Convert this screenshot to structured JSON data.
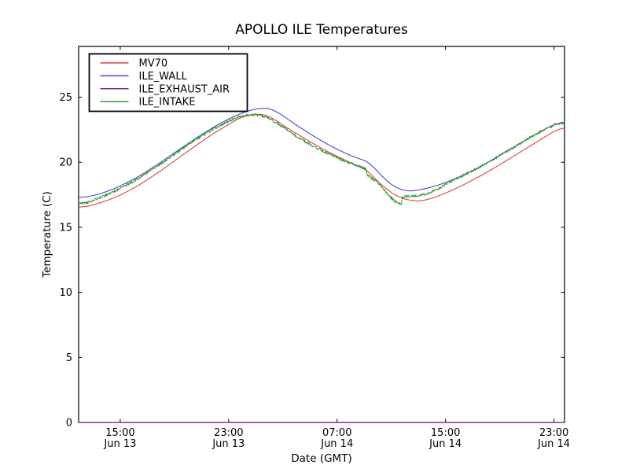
{
  "chart_data": {
    "type": "line",
    "title": "APOLLO ILE Temperatures",
    "xlabel": "Date (GMT)",
    "ylabel": "Temperature (C)",
    "x_unit": "hours since Jun 13 00:00 GMT",
    "xlim": [
      11.93,
      47.78
    ],
    "ylim": [
      0,
      28.9
    ],
    "grid": false,
    "legend_position": "upper left",
    "yticks": [
      0,
      5,
      10,
      15,
      20,
      25
    ],
    "xticks": [
      {
        "value": 15,
        "time": "15:00",
        "date": "Jun 13"
      },
      {
        "value": 23,
        "time": "23:00",
        "date": "Jun 13"
      },
      {
        "value": 31,
        "time": "07:00",
        "date": "Jun 14"
      },
      {
        "value": 39,
        "time": "15:00",
        "date": "Jun 14"
      },
      {
        "value": 47,
        "time": "23:00",
        "date": "Jun 14"
      }
    ],
    "series": [
      {
        "name": "MV70",
        "color": "#e04040",
        "width": 1.1,
        "noise": 0,
        "points": [
          [
            11.93,
            16.55
          ],
          [
            12.5,
            16.6
          ],
          [
            13,
            16.72
          ],
          [
            13.5,
            16.88
          ],
          [
            14,
            17.05
          ],
          [
            14.5,
            17.25
          ],
          [
            15,
            17.48
          ],
          [
            15.5,
            17.74
          ],
          [
            16,
            18.02
          ],
          [
            16.5,
            18.32
          ],
          [
            17,
            18.65
          ],
          [
            17.5,
            19.0
          ],
          [
            18,
            19.35
          ],
          [
            18.5,
            19.72
          ],
          [
            19,
            20.1
          ],
          [
            19.5,
            20.48
          ],
          [
            20,
            20.85
          ],
          [
            20.5,
            21.22
          ],
          [
            21,
            21.58
          ],
          [
            21.5,
            21.94
          ],
          [
            22,
            22.28
          ],
          [
            22.5,
            22.6
          ],
          [
            23,
            22.9
          ],
          [
            23.4,
            23.15
          ],
          [
            23.8,
            23.38
          ],
          [
            24.2,
            23.52
          ],
          [
            24.6,
            23.62
          ],
          [
            25,
            23.66
          ],
          [
            25.4,
            23.68
          ],
          [
            25.8,
            23.58
          ],
          [
            26.2,
            23.38
          ],
          [
            26.7,
            23.08
          ],
          [
            27.2,
            22.72
          ],
          [
            27.8,
            22.32
          ],
          [
            28.4,
            21.95
          ],
          [
            29,
            21.58
          ],
          [
            29.5,
            21.28
          ],
          [
            30,
            20.98
          ],
          [
            30.5,
            20.72
          ],
          [
            31,
            20.45
          ],
          [
            31.5,
            20.2
          ],
          [
            32,
            19.95
          ],
          [
            32.5,
            19.72
          ],
          [
            33.1,
            19.42
          ],
          [
            33.5,
            19.05
          ],
          [
            33.9,
            18.65
          ],
          [
            34.3,
            18.25
          ],
          [
            34.7,
            17.9
          ],
          [
            35.1,
            17.6
          ],
          [
            35.5,
            17.38
          ],
          [
            35.9,
            17.2
          ],
          [
            36.4,
            17.08
          ],
          [
            36.9,
            17.02
          ],
          [
            37.3,
            17.05
          ],
          [
            37.7,
            17.15
          ],
          [
            38.2,
            17.3
          ],
          [
            38.7,
            17.5
          ],
          [
            39.2,
            17.72
          ],
          [
            39.7,
            17.95
          ],
          [
            40.2,
            18.2
          ],
          [
            40.7,
            18.46
          ],
          [
            41.2,
            18.74
          ],
          [
            41.7,
            19.02
          ],
          [
            42.2,
            19.32
          ],
          [
            42.7,
            19.62
          ],
          [
            43.2,
            19.94
          ],
          [
            43.7,
            20.26
          ],
          [
            44.2,
            20.58
          ],
          [
            44.7,
            20.9
          ],
          [
            45.2,
            21.22
          ],
          [
            45.7,
            21.54
          ],
          [
            46.1,
            21.8
          ],
          [
            46.5,
            22.05
          ],
          [
            46.9,
            22.3
          ],
          [
            47.2,
            22.45
          ],
          [
            47.45,
            22.55
          ],
          [
            47.65,
            22.6
          ],
          [
            47.78,
            22.6
          ]
        ]
      },
      {
        "name": "ILE_WALL",
        "color": "#4545d5",
        "width": 1.1,
        "noise": 0,
        "points": [
          [
            11.93,
            17.3
          ],
          [
            12.5,
            17.34
          ],
          [
            13,
            17.44
          ],
          [
            13.5,
            17.58
          ],
          [
            14,
            17.75
          ],
          [
            14.5,
            17.95
          ],
          [
            15,
            18.18
          ],
          [
            15.5,
            18.43
          ],
          [
            16,
            18.7
          ],
          [
            16.5,
            19.0
          ],
          [
            17,
            19.32
          ],
          [
            17.5,
            19.66
          ],
          [
            18,
            20.0
          ],
          [
            18.5,
            20.36
          ],
          [
            19,
            20.72
          ],
          [
            19.5,
            21.08
          ],
          [
            20,
            21.43
          ],
          [
            20.5,
            21.78
          ],
          [
            21,
            22.12
          ],
          [
            21.5,
            22.45
          ],
          [
            22,
            22.76
          ],
          [
            22.5,
            23.05
          ],
          [
            23,
            23.32
          ],
          [
            23.5,
            23.56
          ],
          [
            24,
            23.78
          ],
          [
            24.4,
            23.92
          ],
          [
            24.8,
            24.04
          ],
          [
            25.2,
            24.12
          ],
          [
            25.6,
            24.15
          ],
          [
            26,
            24.1
          ],
          [
            26.4,
            23.95
          ],
          [
            26.9,
            23.65
          ],
          [
            27.4,
            23.28
          ],
          [
            28,
            22.85
          ],
          [
            28.6,
            22.45
          ],
          [
            29.2,
            22.05
          ],
          [
            29.8,
            21.68
          ],
          [
            30.4,
            21.32
          ],
          [
            31,
            21.0
          ],
          [
            31.5,
            20.75
          ],
          [
            32,
            20.52
          ],
          [
            32.5,
            20.32
          ],
          [
            33.1,
            20.1
          ],
          [
            33.4,
            19.88
          ],
          [
            33.8,
            19.5
          ],
          [
            34.2,
            19.05
          ],
          [
            34.6,
            18.65
          ],
          [
            35,
            18.3
          ],
          [
            35.4,
            18.05
          ],
          [
            35.8,
            17.88
          ],
          [
            36.2,
            17.8
          ],
          [
            36.6,
            17.8
          ],
          [
            37,
            17.86
          ],
          [
            37.4,
            17.95
          ],
          [
            38,
            18.1
          ],
          [
            38.5,
            18.26
          ],
          [
            39,
            18.44
          ],
          [
            39.5,
            18.64
          ],
          [
            40,
            18.86
          ],
          [
            40.5,
            19.1
          ],
          [
            41,
            19.36
          ],
          [
            41.5,
            19.63
          ],
          [
            42,
            19.92
          ],
          [
            42.5,
            20.22
          ],
          [
            43,
            20.52
          ],
          [
            43.5,
            20.83
          ],
          [
            44,
            21.14
          ],
          [
            44.5,
            21.45
          ],
          [
            45,
            21.76
          ],
          [
            45.5,
            22.06
          ],
          [
            46,
            22.35
          ],
          [
            46.4,
            22.57
          ],
          [
            46.8,
            22.77
          ],
          [
            47.1,
            22.9
          ],
          [
            47.4,
            23.0
          ],
          [
            47.6,
            23.04
          ],
          [
            47.78,
            23.05
          ]
        ]
      },
      {
        "name": "ILE_EXHAUST_AIR",
        "color": "#812d8d",
        "width": 1.3,
        "noise": 0,
        "points": [
          [
            11.93,
            0
          ],
          [
            47.78,
            0
          ]
        ]
      },
      {
        "name": "ILE_INTAKE",
        "color": "#339933",
        "width": 1.0,
        "noise": 0.09,
        "points": [
          [
            11.93,
            16.85
          ],
          [
            12.3,
            16.85
          ],
          [
            12.7,
            16.95
          ],
          [
            13.1,
            17.1
          ],
          [
            13.5,
            17.28
          ],
          [
            14,
            17.5
          ],
          [
            14.5,
            17.73
          ],
          [
            15,
            17.98
          ],
          [
            15.5,
            18.25
          ],
          [
            16,
            18.55
          ],
          [
            16.5,
            18.87
          ],
          [
            17,
            19.2
          ],
          [
            17.5,
            19.55
          ],
          [
            18,
            19.9
          ],
          [
            18.5,
            20.26
          ],
          [
            19,
            20.62
          ],
          [
            19.5,
            20.98
          ],
          [
            20,
            21.33
          ],
          [
            20.5,
            21.68
          ],
          [
            21,
            22.0
          ],
          [
            21.5,
            22.32
          ],
          [
            22,
            22.62
          ],
          [
            22.5,
            22.9
          ],
          [
            23,
            23.16
          ],
          [
            23.5,
            23.38
          ],
          [
            24,
            23.54
          ],
          [
            24.4,
            23.62
          ],
          [
            24.8,
            23.65
          ],
          [
            25.2,
            23.62
          ],
          [
            25.6,
            23.52
          ],
          [
            26,
            23.36
          ],
          [
            26.5,
            23.05
          ],
          [
            27,
            22.7
          ],
          [
            27.5,
            22.34
          ],
          [
            28,
            22.0
          ],
          [
            28.5,
            21.68
          ],
          [
            29,
            21.38
          ],
          [
            29.5,
            21.08
          ],
          [
            30,
            20.82
          ],
          [
            30.5,
            20.58
          ],
          [
            31,
            20.35
          ],
          [
            31.5,
            20.12
          ],
          [
            32,
            19.92
          ],
          [
            32.5,
            19.72
          ],
          [
            32.9,
            19.58
          ],
          [
            33.08,
            19.5
          ],
          [
            33.14,
            19.46
          ],
          [
            33.22,
            19.02
          ],
          [
            33.6,
            18.72
          ],
          [
            34,
            18.42
          ],
          [
            34.4,
            17.98
          ],
          [
            34.8,
            17.5
          ],
          [
            35.1,
            17.15
          ],
          [
            35.4,
            16.9
          ],
          [
            35.6,
            16.8
          ],
          [
            35.74,
            16.76
          ],
          [
            35.8,
            17.32
          ],
          [
            36.2,
            17.38
          ],
          [
            36.6,
            17.4
          ],
          [
            37,
            17.43
          ],
          [
            37.4,
            17.5
          ],
          [
            37.8,
            17.62
          ],
          [
            38.2,
            17.82
          ],
          [
            38.6,
            18.04
          ],
          [
            39,
            18.3
          ],
          [
            39.5,
            18.58
          ],
          [
            40,
            18.84
          ],
          [
            40.5,
            19.09
          ],
          [
            41,
            19.35
          ],
          [
            41.5,
            19.62
          ],
          [
            42,
            19.91
          ],
          [
            42.5,
            20.21
          ],
          [
            43,
            20.51
          ],
          [
            43.5,
            20.82
          ],
          [
            44,
            21.13
          ],
          [
            44.5,
            21.44
          ],
          [
            45,
            21.75
          ],
          [
            45.5,
            22.05
          ],
          [
            46,
            22.34
          ],
          [
            46.4,
            22.56
          ],
          [
            46.8,
            22.76
          ],
          [
            47.1,
            22.9
          ],
          [
            47.35,
            22.99
          ],
          [
            47.55,
            23.02
          ],
          [
            47.7,
            22.95
          ],
          [
            47.78,
            22.88
          ]
        ]
      }
    ],
    "legend_entries": [
      "MV70",
      "ILE_WALL",
      "ILE_EXHAUST_AIR",
      "ILE_INTAKE"
    ]
  }
}
